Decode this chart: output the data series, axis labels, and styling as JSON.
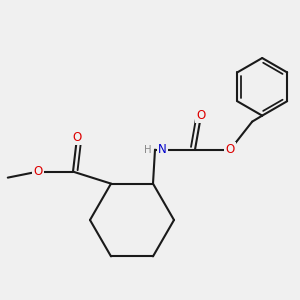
{
  "background_color": "#f0f0f0",
  "bond_color": "#1a1a1a",
  "bond_width": 1.5,
  "atom_colors": {
    "O": "#dd0000",
    "N": "#0000cc",
    "C": "#1a1a1a"
  },
  "font_size": 8.5,
  "figsize": [
    3.0,
    3.0
  ],
  "dpi": 100,
  "xlim": [
    -1.0,
    6.5
  ],
  "ylim": [
    -3.5,
    4.0
  ]
}
